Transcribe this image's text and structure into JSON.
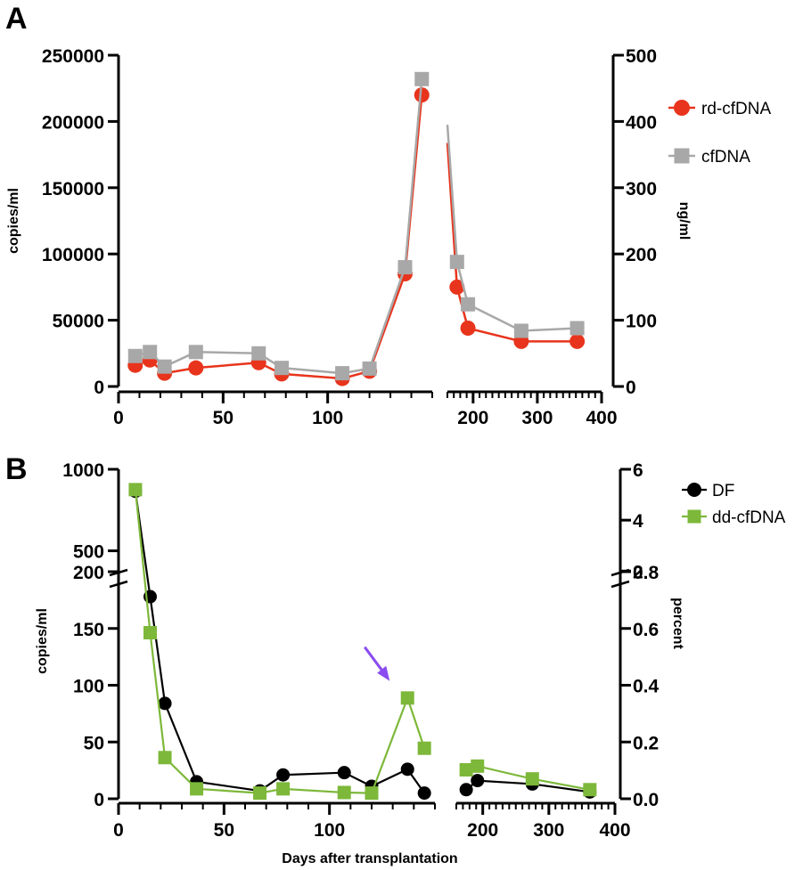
{
  "chart_data": [
    {
      "panel": "A",
      "type": "line",
      "ylabel": "copies/ml",
      "y2label": "ng/ml",
      "xlabel": "",
      "ylim": [
        0,
        250000
      ],
      "y2lim": [
        0,
        500
      ],
      "x_segments": [
        {
          "range": [
            0,
            150
          ],
          "ticks": [
            0,
            50,
            100
          ],
          "tick_labels": [
            "0",
            "50",
            "100"
          ]
        },
        {
          "range": [
            160,
            400
          ],
          "ticks": [
            200,
            300,
            400
          ],
          "tick_labels": [
            "200",
            "300",
            "400"
          ]
        }
      ],
      "yticks": [
        0,
        50000,
        100000,
        150000,
        200000,
        250000
      ],
      "ytick_labels": [
        "0",
        "50000",
        "100000",
        "150000",
        "200000",
        "250000"
      ],
      "y2ticks": [
        0,
        100,
        200,
        300,
        400,
        500
      ],
      "y2tick_labels": [
        "0",
        "100",
        "200",
        "300",
        "400",
        "500"
      ],
      "legend": {
        "position": "top-right"
      },
      "series": [
        {
          "name": "rd-cfDNA",
          "axis": "left",
          "color": "#e8341c",
          "line_color": "#e8341c",
          "marker": "circle",
          "points": [
            [
              8,
              16000
            ],
            [
              15,
              20000
            ],
            [
              22,
              10000
            ],
            [
              37,
              14000
            ],
            [
              67,
              18000
            ],
            [
              78,
              9500
            ],
            [
              107,
              6000
            ],
            [
              120,
              11500
            ],
            [
              137,
              85000
            ],
            [
              145,
              220000
            ],
            [
              175,
              75000
            ],
            [
              192,
              44000
            ],
            [
              275,
              34000
            ],
            [
              362,
              34000
            ]
          ]
        },
        {
          "name": "cfDNA",
          "axis": "right",
          "color": "#a8a8a8",
          "line_color": "#a8a8a8",
          "marker": "square",
          "points": [
            [
              8,
              46
            ],
            [
              15,
              52
            ],
            [
              22,
              30
            ],
            [
              37,
              52
            ],
            [
              67,
              50
            ],
            [
              78,
              28
            ],
            [
              107,
              20
            ],
            [
              120,
              27
            ],
            [
              137,
              180
            ],
            [
              145,
              464
            ],
            [
              175,
              188
            ],
            [
              192,
              124
            ],
            [
              275,
              84
            ],
            [
              362,
              88
            ]
          ]
        }
      ]
    },
    {
      "panel": "B",
      "type": "line",
      "ylabel": "copies/ml",
      "y2label": "percent",
      "xlabel": "Days after transplantation",
      "x_segments": [
        {
          "range": [
            0,
            150
          ],
          "ticks": [
            0,
            50,
            100
          ],
          "tick_labels": [
            "0",
            "50",
            "100"
          ]
        },
        {
          "range": [
            160,
            400
          ],
          "ticks": [
            200,
            300,
            400
          ],
          "tick_labels": [
            "200",
            "300",
            "400"
          ]
        }
      ],
      "y_segments": [
        {
          "range": [
            0,
            200
          ],
          "ticks": [
            0,
            50,
            100,
            150,
            200
          ],
          "tick_labels": [
            "0",
            "50",
            "100",
            "150",
            "200"
          ]
        },
        {
          "range": [
            290,
            1000
          ],
          "ticks": [
            500,
            1000
          ],
          "tick_labels": [
            "500",
            "1000"
          ]
        }
      ],
      "y2_segments": [
        {
          "range": [
            0,
            0.8
          ],
          "ticks": [
            0,
            0.2,
            0.4,
            0.6,
            0.8
          ],
          "tick_labels": [
            "0.0",
            "0.2",
            "0.4",
            "0.6",
            "0.8"
          ]
        },
        {
          "range": [
            1.45,
            6
          ],
          "ticks": [
            2,
            4,
            6
          ],
          "tick_labels": [
            "2",
            "4",
            "6"
          ]
        }
      ],
      "legend": {
        "position": "top-right"
      },
      "annotation": {
        "type": "arrow",
        "color": "#8a4cf0",
        "x": 137,
        "y2": 0.39
      },
      "series": [
        {
          "name": "DF",
          "axis": "left",
          "color": "#000000",
          "line_color": "#000000",
          "marker": "circle",
          "points": [
            [
              8,
              865
            ],
            [
              15,
              178
            ],
            [
              22,
              84
            ],
            [
              37,
              15
            ],
            [
              67,
              7
            ],
            [
              78,
              21
            ],
            [
              107,
              23
            ],
            [
              120,
              11
            ],
            [
              137,
              26
            ],
            [
              145,
              5
            ],
            [
              175,
              8
            ],
            [
              192,
              16
            ],
            [
              275,
              13
            ],
            [
              362,
              6
            ]
          ]
        },
        {
          "name": "dd-cfDNA",
          "axis": "right",
          "color": "#7db83a",
          "line_color": "#7db83a",
          "marker": "square",
          "points": [
            [
              8,
              5.2
            ],
            [
              15,
              0.585
            ],
            [
              22,
              0.145
            ],
            [
              37,
              0.035
            ],
            [
              67,
              0.02
            ],
            [
              78,
              0.035
            ],
            [
              107,
              0.022
            ],
            [
              120,
              0.02
            ],
            [
              137,
              0.355
            ],
            [
              145,
              0.178
            ],
            [
              175,
              0.102
            ],
            [
              192,
              0.115
            ],
            [
              275,
              0.07
            ],
            [
              362,
              0.032
            ]
          ]
        }
      ]
    }
  ]
}
